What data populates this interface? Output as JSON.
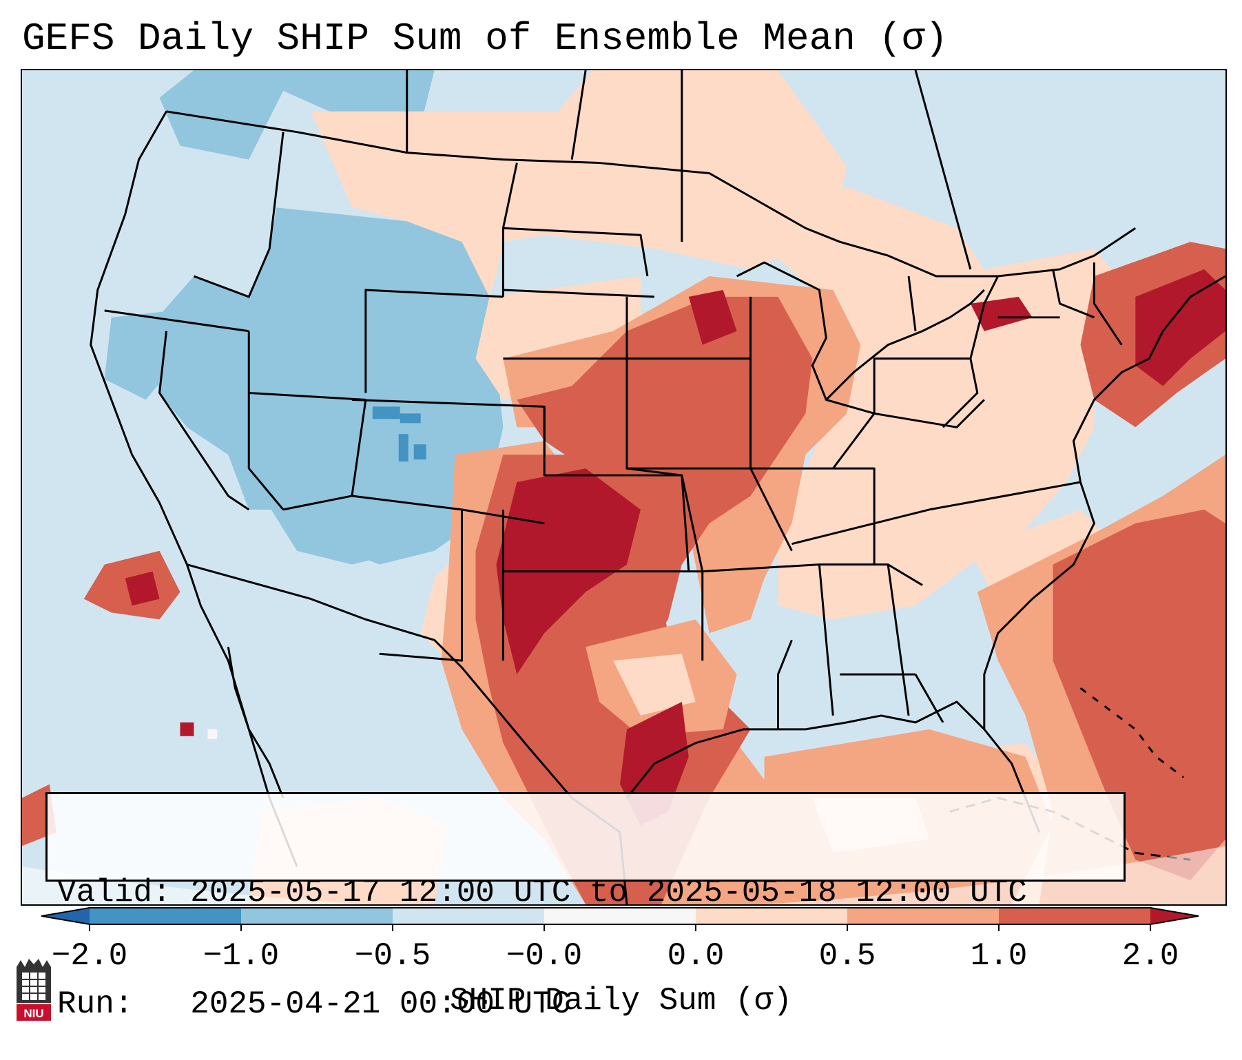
{
  "title": "GEFS Daily SHIP Sum of Ensemble Mean (σ)",
  "info": {
    "valid_line": "Valid: 2025-05-17 12:00 UTC to 2025-05-18 12:00 UTC",
    "run_line": "Run:   2025-04-21 00:00 UTC"
  },
  "colorbar": {
    "label": "SHIP Daily Sum (σ)",
    "ticks": [
      "−2.0",
      "−1.0",
      "−0.5",
      "−0.0",
      "0.0",
      "0.5",
      "1.0",
      "2.0"
    ],
    "bins": [
      {
        "range": "< -2.0",
        "color": "#2166ac"
      },
      {
        "range": "-2.0 to -1.0",
        "color": "#4393c3"
      },
      {
        "range": "-1.0 to -0.5",
        "color": "#92c5de"
      },
      {
        "range": "-0.5 to -0.0",
        "color": "#d1e5f0"
      },
      {
        "range": "-0.0 to 0.0",
        "color": "#f7f7f7"
      },
      {
        "range": "0.0 to 0.5",
        "color": "#fddbc7"
      },
      {
        "range": "0.5 to 1.0",
        "color": "#f4a582"
      },
      {
        "range": "1.0 to 2.0",
        "color": "#d6604d"
      },
      {
        "range": "> 2.0",
        "color": "#b2182b"
      }
    ]
  },
  "logo": {
    "text": "NIU",
    "name": "niu-logo"
  }
}
